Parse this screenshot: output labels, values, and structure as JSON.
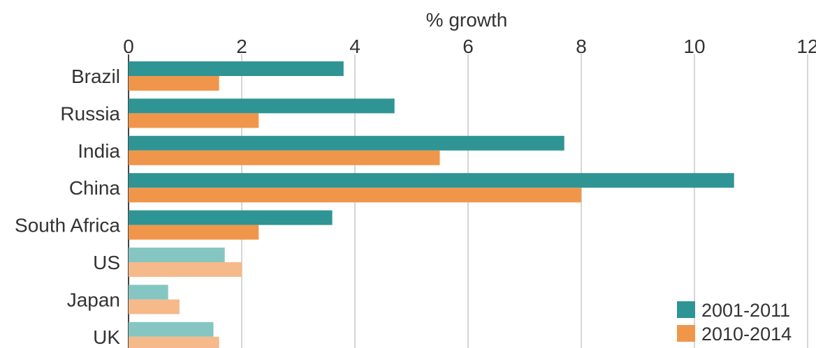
{
  "chart_data": {
    "type": "bar",
    "orientation": "horizontal",
    "xlabel": "% growth",
    "xlim": [
      0,
      12
    ],
    "xticks": [
      "0",
      "2",
      "4",
      "6",
      "8",
      "10",
      "12"
    ],
    "grid": true,
    "legend_position": "bottom-right",
    "categories": [
      "Brazil",
      "Russia",
      "India",
      "China",
      "South Africa",
      "US",
      "Japan",
      "UK"
    ],
    "series": [
      {
        "name": "2001-2011",
        "color": "#2f9494",
        "color_light": "#86c6c2",
        "values": [
          3.8,
          4.7,
          7.7,
          10.7,
          3.6,
          1.7,
          0.7,
          1.5
        ]
      },
      {
        "name": "2010-2014",
        "color": "#f0964a",
        "color_light": "#f5b98a",
        "values": [
          1.6,
          2.3,
          5.5,
          8.0,
          2.3,
          2.0,
          0.9,
          1.6
        ]
      }
    ],
    "highlight": {
      "dark_categories": [
        "Brazil",
        "Russia",
        "India",
        "China",
        "South Africa"
      ],
      "light_categories": [
        "US",
        "Japan",
        "UK"
      ]
    }
  }
}
